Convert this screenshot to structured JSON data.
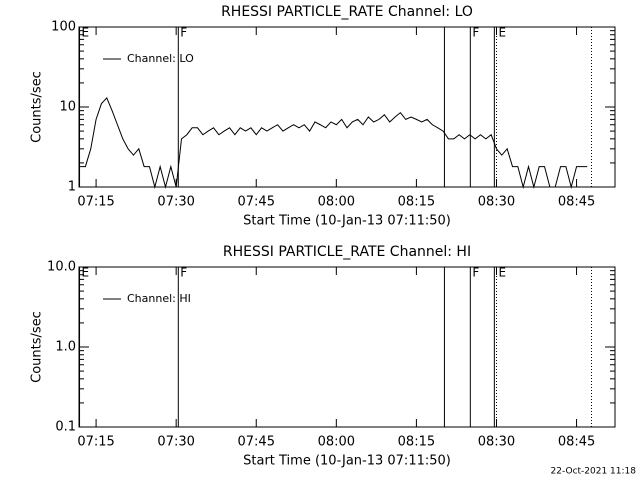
{
  "chart_data": [
    {
      "type": "line",
      "title": "RHESSI PARTICLE_RATE Channel: LO",
      "xlabel": "Start Time (10-Jan-13 07:11:50)",
      "ylabel": "Counts/sec",
      "log_y": true,
      "ylim": [
        1,
        100
      ],
      "yticks": [
        1,
        10,
        100
      ],
      "xlim": [
        431.8,
        532.2
      ],
      "xticks": [
        {
          "value": 435,
          "label": "07:15"
        },
        {
          "value": 450,
          "label": "07:30"
        },
        {
          "value": 465,
          "label": "07:45"
        },
        {
          "value": 480,
          "label": "08:00"
        },
        {
          "value": 495,
          "label": "08:15"
        },
        {
          "value": 510,
          "label": "08:30"
        },
        {
          "value": 525,
          "label": "08:45"
        }
      ],
      "legend": "upper left",
      "markers": [
        {
          "x": 431.9,
          "label": "E",
          "style": "solid"
        },
        {
          "x": 450.4,
          "label": "F",
          "style": "solid"
        },
        {
          "x": 500.25,
          "style": "solid"
        },
        {
          "x": 505.1,
          "label": "F",
          "style": "solid"
        },
        {
          "x": 509.6,
          "style": "solid"
        },
        {
          "x": 510.0,
          "label": "E",
          "style": "dotted"
        },
        {
          "x": 527.8,
          "style": "dotted"
        }
      ],
      "x": [
        432,
        433,
        434,
        435,
        436,
        437,
        438,
        439,
        440,
        441,
        442,
        443,
        444,
        445,
        446,
        447,
        448,
        449,
        450,
        451,
        452,
        453,
        454,
        455,
        456,
        457,
        458,
        459,
        460,
        461,
        462,
        463,
        464,
        465,
        466,
        467,
        468,
        469,
        470,
        471,
        472,
        473,
        474,
        475,
        476,
        477,
        478,
        479,
        480,
        481,
        482,
        483,
        484,
        485,
        486,
        487,
        488,
        489,
        490,
        491,
        492,
        493,
        494,
        495,
        496,
        497,
        498,
        499,
        500,
        501,
        502,
        503,
        504,
        505,
        506,
        507,
        508,
        509,
        510,
        511,
        512,
        513,
        514,
        515,
        516,
        517,
        518,
        519,
        520,
        521,
        522,
        523,
        524,
        525,
        526,
        527
      ],
      "series": [
        {
          "name": "Channel: LO",
          "color": "#000000",
          "values": [
            1.8,
            1.8,
            3,
            7,
            11,
            13,
            9,
            6,
            4,
            3,
            2.5,
            3,
            1.8,
            1.8,
            1,
            1.8,
            1,
            1.8,
            1,
            4,
            4.5,
            5.5,
            5.5,
            4.5,
            5,
            5.5,
            4.5,
            5,
            5.5,
            4.5,
            5.5,
            5,
            5.5,
            4.5,
            5.5,
            5,
            5.5,
            6,
            5,
            5.5,
            6,
            5.5,
            6,
            5,
            6.5,
            6,
            5.5,
            6.5,
            6,
            7,
            5.5,
            6.5,
            7,
            6,
            7.5,
            6.5,
            7,
            8,
            6.5,
            7.5,
            8.5,
            7,
            7.5,
            7,
            6.5,
            7,
            6,
            5.5,
            5,
            4,
            4,
            4.5,
            4,
            4.5,
            4,
            4.5,
            4,
            4.5,
            3,
            2.5,
            3,
            1.8,
            1.8,
            1,
            1.8,
            1,
            1.8,
            1.8,
            1,
            1,
            1.8,
            1.8,
            1,
            1.8,
            1.8,
            1.8
          ]
        }
      ]
    },
    {
      "type": "line",
      "title": "RHESSI PARTICLE_RATE Channel: HI",
      "xlabel": "Start Time (10-Jan-13 07:11:50)",
      "ylabel": "Counts/sec",
      "log_y": true,
      "ylim": [
        0.1,
        10
      ],
      "yticks": [
        0.1,
        {
          "value": 1,
          "label": "1.0"
        },
        {
          "value": 10,
          "label": "10.0"
        }
      ],
      "xlim": [
        431.8,
        532.2
      ],
      "xticks": [
        {
          "value": 435,
          "label": "07:15"
        },
        {
          "value": 450,
          "label": "07:30"
        },
        {
          "value": 465,
          "label": "07:45"
        },
        {
          "value": 480,
          "label": "08:00"
        },
        {
          "value": 495,
          "label": "08:15"
        },
        {
          "value": 510,
          "label": "08:30"
        },
        {
          "value": 525,
          "label": "08:45"
        }
      ],
      "legend": "upper left",
      "markers": [
        {
          "x": 431.9,
          "label": "E",
          "style": "solid"
        },
        {
          "x": 450.4,
          "label": "F",
          "style": "solid"
        },
        {
          "x": 500.25,
          "style": "solid"
        },
        {
          "x": 505.1,
          "label": "F",
          "style": "solid"
        },
        {
          "x": 509.6,
          "style": "solid"
        },
        {
          "x": 510.0,
          "label": "E",
          "style": "dotted"
        },
        {
          "x": 527.8,
          "style": "dotted"
        }
      ],
      "x": [],
      "series": [
        {
          "name": "Channel: HI",
          "color": "#000000",
          "values": []
        }
      ]
    }
  ],
  "footer": "22-Oct-2021 11:18"
}
